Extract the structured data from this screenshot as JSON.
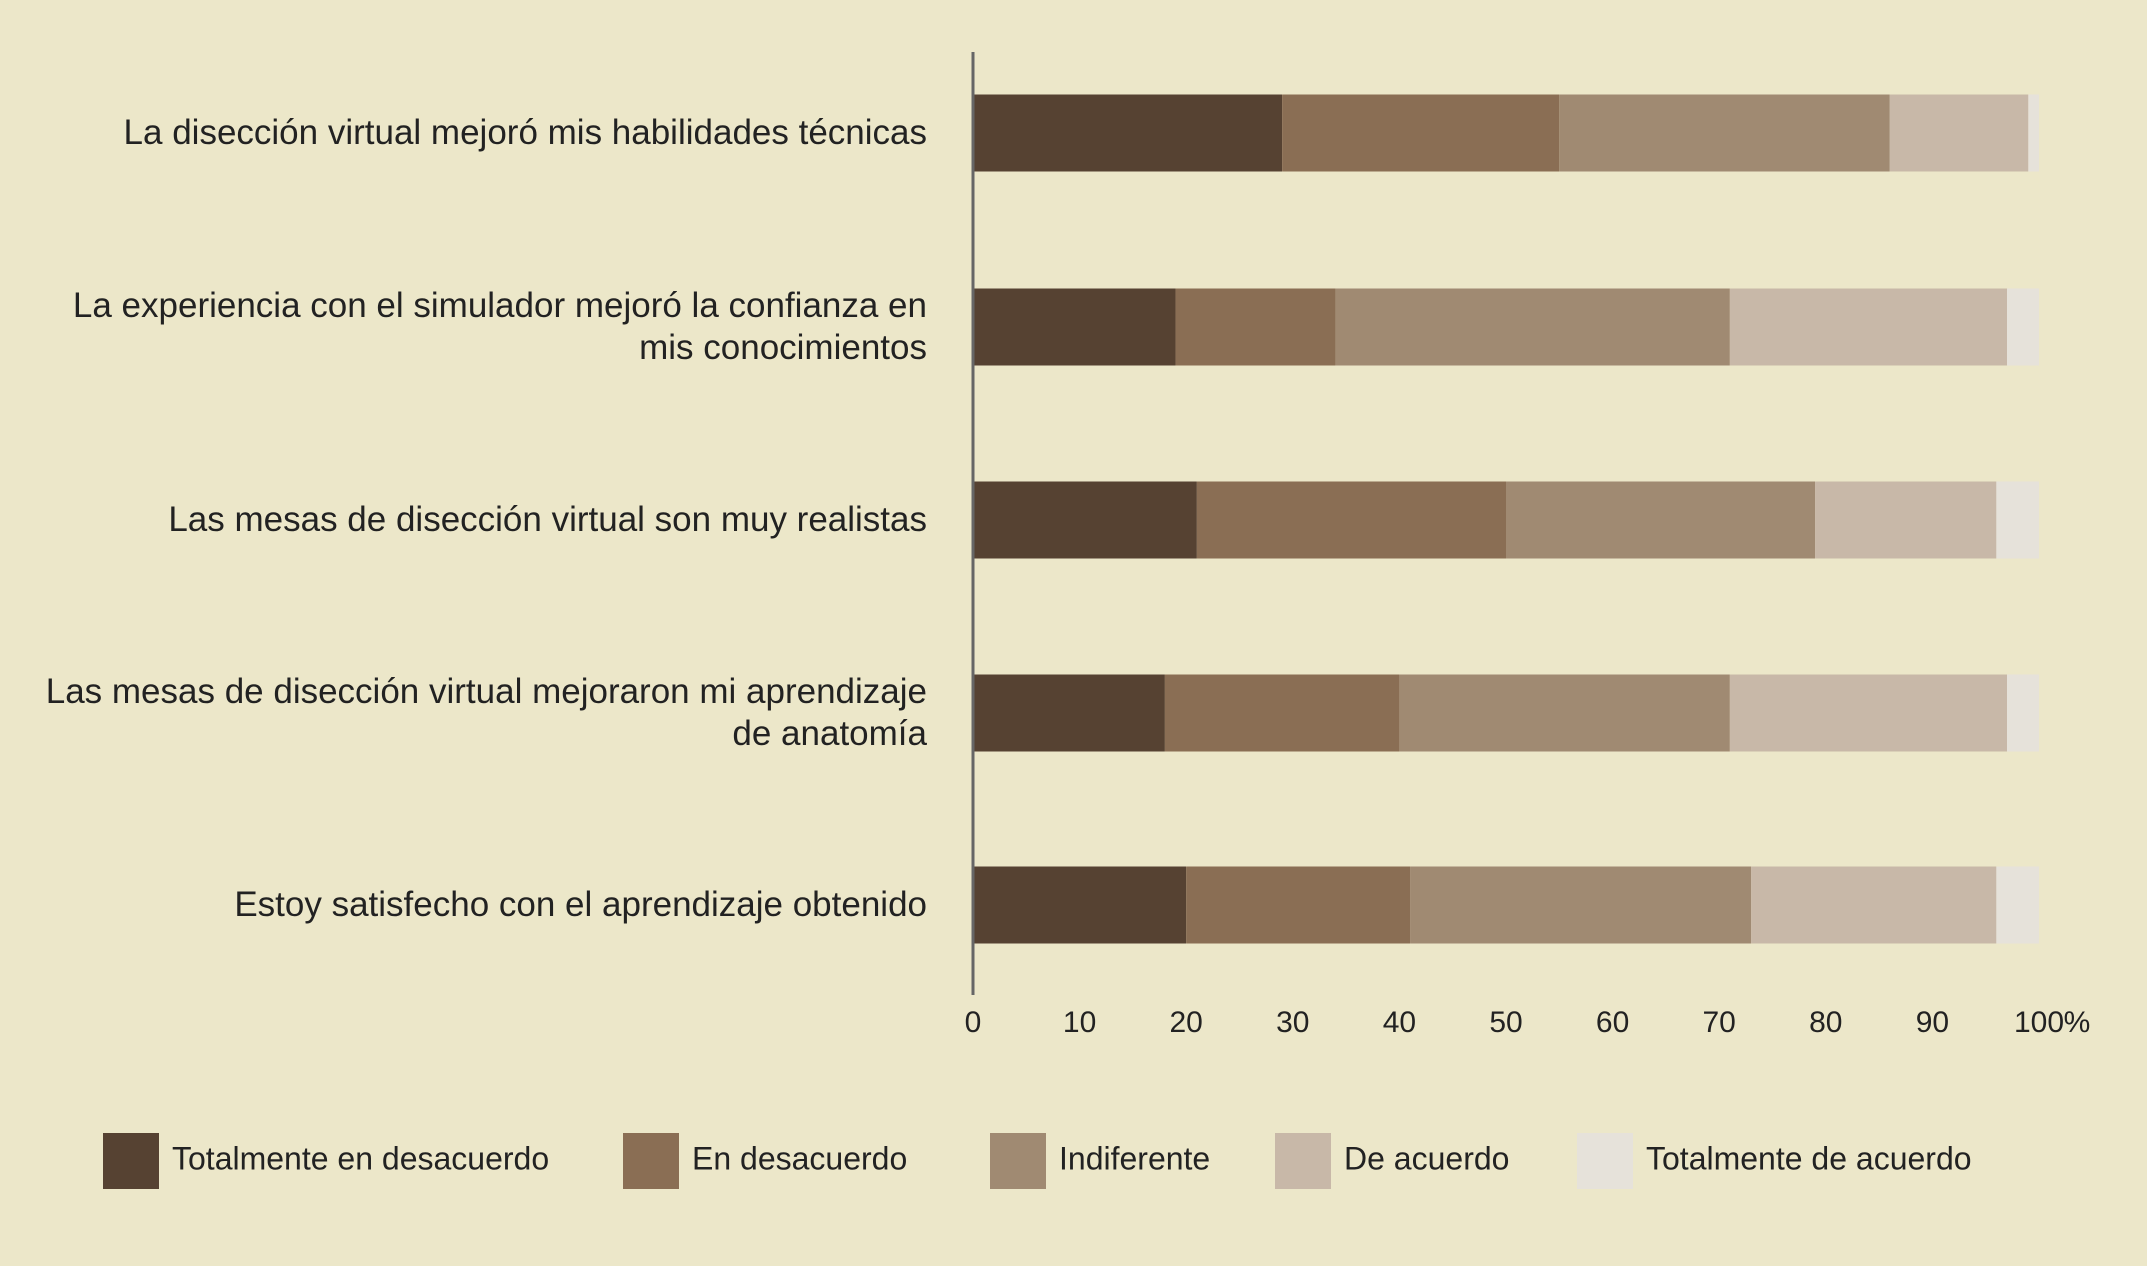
{
  "chart_data": {
    "type": "stacked-barh",
    "categories": [
      "La disección virtual mejoró mis habilidades técnicas",
      "La experiencia con el simulador mejoró la confianza en mis conocimientos",
      "Las mesas de disección virtual son muy realistas",
      "Las mesas de disección virtual mejoraron mi aprendizaje de anatomía",
      "Estoy satisfecho con el aprendizaje obtenido"
    ],
    "series": [
      {
        "name": "Totalmente en desacuerdo",
        "color": "#564232",
        "values": [
          29,
          19,
          21,
          18,
          20
        ]
      },
      {
        "name": "En desacuerdo",
        "color": "#8a6e54",
        "values": [
          26,
          15,
          29,
          22,
          21
        ]
      },
      {
        "name": "Indiferente",
        "color": "#a08a72",
        "values": [
          31,
          37,
          29,
          31,
          32
        ]
      },
      {
        "name": "De acuerdo",
        "color": "#c8b8a8",
        "values": [
          13,
          26,
          17,
          26,
          23
        ]
      },
      {
        "name": "Totalmente de acuerdo",
        "color": "#e6e2da",
        "values": [
          1,
          3,
          4,
          3,
          4
        ]
      }
    ],
    "xlim": [
      0,
      100
    ],
    "xticks": [
      0,
      10,
      20,
      30,
      40,
      50,
      60,
      70,
      80,
      90,
      100
    ],
    "x_unit": "%",
    "grid": false,
    "legend": "bottom"
  }
}
